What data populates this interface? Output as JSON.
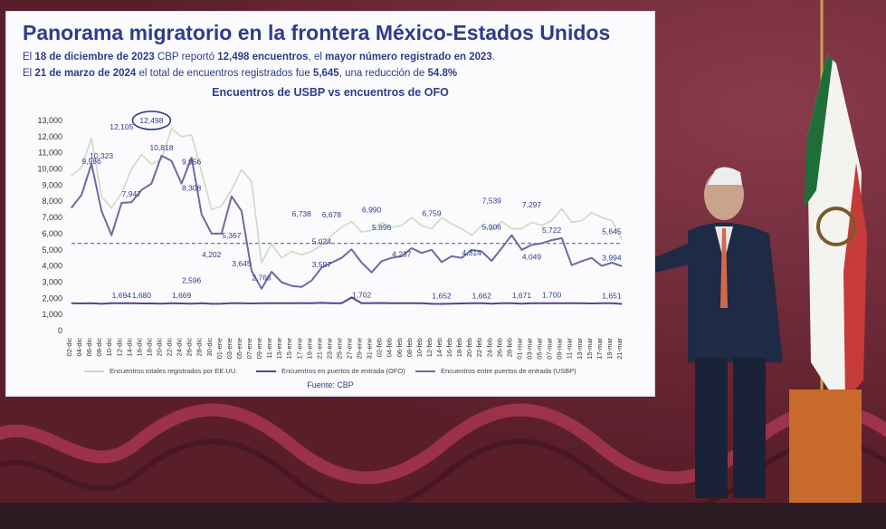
{
  "slide": {
    "title": "Panorama migratorio en la frontera México-Estados Unidos",
    "line1": {
      "p1": "El ",
      "b1": "18 de diciembre de 2023",
      "p2": " CBP reportó ",
      "b2": "12,498 encuentros",
      "p3": ", el ",
      "b3": "mayor número registrado en 2023",
      "p4": "."
    },
    "line2": {
      "p1": "El ",
      "b1": "21 de marzo de 2024",
      "p2": " el total de encuentros registrados fue ",
      "b2": "5,645",
      "p3": ", una reducción de ",
      "b3": "54.8%"
    },
    "source": "Fuente: CBP"
  },
  "chart_data": {
    "type": "line",
    "title": "Encuentros de USBP vs encuentros de OFO",
    "ylim": [
      0,
      13000
    ],
    "yticks": [
      "0",
      "1,000",
      "2,000",
      "3,000",
      "4,000",
      "5,000",
      "6,000",
      "7,000",
      "8,000",
      "9,000",
      "10,000",
      "11,000",
      "12,000",
      "13,000"
    ],
    "grid": false,
    "legend_position": "bottom",
    "colors": {
      "total": "#c9dcc0",
      "ofo": "#5b3f95",
      "usbp": "#6e6aa3",
      "reference": "#4b4f9a",
      "highlight": "#2e3c8c"
    },
    "x_labels": [
      "02-dic",
      "04-dic",
      "06-dic",
      "08-dic",
      "10-dic",
      "12-dic",
      "14-dic",
      "16-dic",
      "18-dic",
      "20-dic",
      "22-dic",
      "24-dic",
      "26-dic",
      "28-dic",
      "30-dic",
      "01-ene",
      "03-ene",
      "05-ene",
      "07-ene",
      "09-ene",
      "11-ene",
      "13-ene",
      "15-ene",
      "17-ene",
      "19-ene",
      "21-ene",
      "23-ene",
      "25-ene",
      "27-ene",
      "29-ene",
      "31-ene",
      "02-feb",
      "04-feb",
      "06-feb",
      "08-feb",
      "10-feb",
      "12-feb",
      "14-feb",
      "16-feb",
      "18-feb",
      "20-feb",
      "22-feb",
      "24-feb",
      "26-feb",
      "28-feb",
      "01-mar",
      "03-mar",
      "05-mar",
      "07-mar",
      "09-mar",
      "11-mar",
      "13-mar",
      "15-mar",
      "17-mar",
      "19-mar",
      "21-mar"
    ],
    "reference_line": 5394,
    "series": [
      {
        "name": "Encuentros totales registrados por EE.UU.",
        "key": "total",
        "values": [
          9600,
          10100,
          11900,
          8300,
          7600,
          8500,
          10000,
          10900,
          10300,
          10600,
          12498,
          12000,
          12105,
          9800,
          7500,
          7700,
          8700,
          9956,
          9200,
          4202,
          5367,
          4500,
          4900,
          4700,
          4900,
          5300,
          5900,
          6400,
          6738,
          6100,
          6200,
          6678,
          6400,
          6500,
          6990,
          6500,
          6300,
          6990,
          6600,
          6300,
          5896,
          6500,
          6200,
          6759,
          6300,
          6300,
          6700,
          6500,
          6800,
          7539,
          6700,
          6800,
          7297,
          7000,
          6800,
          5645
        ]
      },
      {
        "name": "Encuentros entre puertos de entrada (USBP)",
        "key": "usbp",
        "values": [
          7600,
          8400,
          10323,
          7400,
          5900,
          7900,
          7947,
          8700,
          9100,
          10818,
          10500,
          9100,
          10700,
          7200,
          6000,
          6000,
          8308,
          7400,
          3700,
          2596,
          3645,
          3000,
          2766,
          2700,
          3100,
          3900,
          4200,
          4500,
          5024,
          4200,
          3597,
          4300,
          4500,
          4600,
          5100,
          4800,
          5000,
          4237,
          4600,
          4500,
          5000,
          4900,
          4314,
          5100,
          5906,
          5000,
          5300,
          5400,
          5600,
          5722,
          4049,
          4300,
          4500,
          4000,
          4200,
          3994
        ]
      },
      {
        "name": "Encuentros en puertos de entrada (OFO)",
        "key": "ofo",
        "values": [
          1694,
          1680,
          1700,
          1660,
          1694,
          1700,
          1690,
          1680,
          1680,
          1669,
          1690,
          1680,
          1669,
          1690,
          1660,
          1670,
          1700,
          1690,
          1680,
          1690,
          1700,
          1690,
          1700,
          1702,
          1700,
          1720,
          1690,
          1700,
          2050,
          1690,
          1702,
          1710,
          1690,
          1700,
          1700,
          1690,
          1660,
          1652,
          1670,
          1680,
          1690,
          1700,
          1662,
          1700,
          1690,
          1671,
          1700,
          1690,
          1700,
          1700,
          1690,
          1700,
          1680,
          1700,
          1690,
          1651
        ]
      }
    ],
    "annotations": [
      {
        "text": "12,498",
        "x": "18-dic",
        "y": 12498,
        "circled": true
      },
      {
        "text": "12,105",
        "x": "12-dic",
        "y": 12105
      },
      {
        "text": "10,323",
        "x": "08-dic",
        "y": 10323
      },
      {
        "text": "9,986",
        "x": "06-dic",
        "y": 9986
      },
      {
        "text": "7,947",
        "x": "14-dic",
        "y": 7947
      },
      {
        "text": "10,818",
        "x": "20-dic",
        "y": 10818
      },
      {
        "text": "9,956",
        "x": "26-dic",
        "y": 9956
      },
      {
        "text": "8,308",
        "x": "26-dic",
        "y": 8308
      },
      {
        "text": "4,202",
        "x": "30-dic",
        "y": 4202
      },
      {
        "text": "2,596",
        "x": "26-dic",
        "y": 2596
      },
      {
        "text": "5,367",
        "x": "03-ene",
        "y": 5367
      },
      {
        "text": "3,645",
        "x": "05-ene",
        "y": 3645
      },
      {
        "text": "2,766",
        "x": "09-ene",
        "y": 2766
      },
      {
        "text": "6,738",
        "x": "17-ene",
        "y": 6738
      },
      {
        "text": "5,024",
        "x": "21-ene",
        "y": 5024
      },
      {
        "text": "3,597",
        "x": "21-ene",
        "y": 3597
      },
      {
        "text": "6,678",
        "x": "23-ene",
        "y": 6678
      },
      {
        "text": "6,990",
        "x": "31-ene",
        "y": 6990
      },
      {
        "text": "5,896",
        "x": "02-feb",
        "y": 5896
      },
      {
        "text": "4,237",
        "x": "06-feb",
        "y": 4237
      },
      {
        "text": "6,759",
        "x": "12-feb",
        "y": 6759
      },
      {
        "text": "4,314",
        "x": "20-feb",
        "y": 4314
      },
      {
        "text": "7,539",
        "x": "24-feb",
        "y": 7539
      },
      {
        "text": "5,906",
        "x": "24-feb",
        "y": 5906
      },
      {
        "text": "7,297",
        "x": "03-mar",
        "y": 7297
      },
      {
        "text": "5,722",
        "x": "07-mar",
        "y": 5722
      },
      {
        "text": "4,049",
        "x": "03-mar",
        "y": 4049
      },
      {
        "text": "5,645",
        "x": "19-mar",
        "y": 5645
      },
      {
        "text": "3,994",
        "x": "19-mar",
        "y": 3994
      },
      {
        "text": "1,694",
        "x": "12-dic",
        "y": 1694
      },
      {
        "text": "1,680",
        "x": "16-dic",
        "y": 1680
      },
      {
        "text": "1,669",
        "x": "24-dic",
        "y": 1669
      },
      {
        "text": "1,702",
        "x": "29-ene",
        "y": 1702
      },
      {
        "text": "1,662",
        "x": "22-feb",
        "y": 1662
      },
      {
        "text": "1,671",
        "x": "01-mar",
        "y": 1671
      },
      {
        "text": "1,700",
        "x": "07-mar",
        "y": 1700
      },
      {
        "text": "1,652",
        "x": "14-feb",
        "y": 1652
      },
      {
        "text": "1,651",
        "x": "19-mar",
        "y": 1651
      }
    ]
  }
}
